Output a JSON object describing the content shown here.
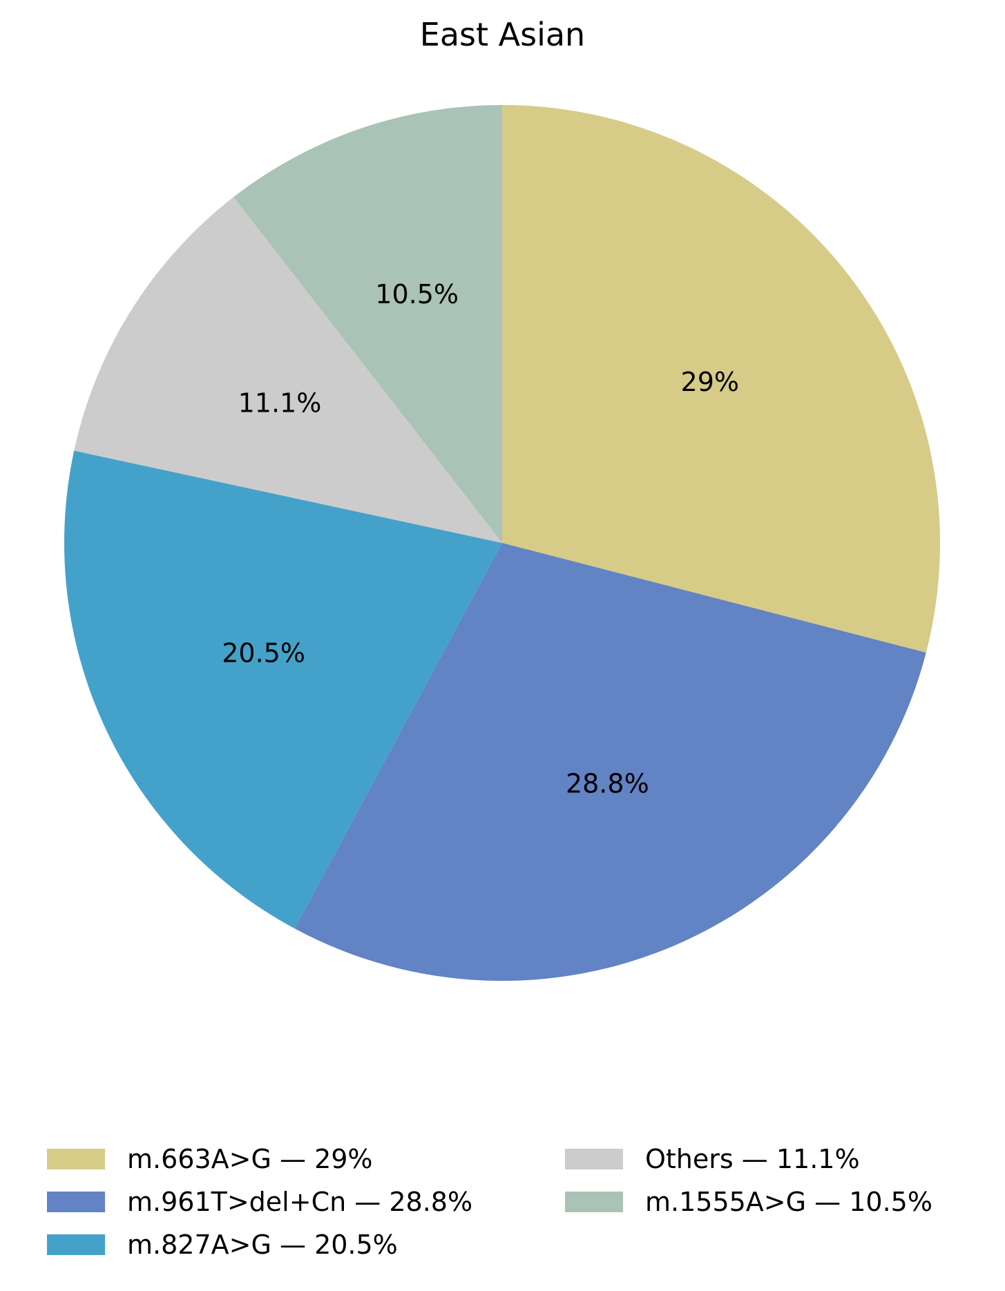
{
  "chart_data": {
    "type": "pie",
    "title": "East Asian",
    "start_angle_deg": 90,
    "direction": "clockwise",
    "slices": [
      {
        "label": "m.663A>G",
        "value": 29.0,
        "pct_label": "29%",
        "legend": "m.663A>G — 29%",
        "color": "#d6cc88"
      },
      {
        "label": "m.961T>del+Cn",
        "value": 28.8,
        "pct_label": "28.8%",
        "legend": "m.961T>del+Cn — 28.8%",
        "color": "#6283c4"
      },
      {
        "label": "m.827A>G",
        "value": 20.5,
        "pct_label": "20.5%",
        "legend": "m.827A>G — 20.5%",
        "color": "#44a2ca"
      },
      {
        "label": "Others",
        "value": 11.1,
        "pct_label": "11.1%",
        "legend": "Others — 11.1%",
        "color": "#cccccc"
      },
      {
        "label": "m.1555A>G",
        "value": 10.5,
        "pct_label": "10.5%",
        "legend": "m.1555A>G — 10.5%",
        "color": "#a9c3b6"
      }
    ],
    "legend_position": "bottom",
    "legend_columns": 2
  }
}
